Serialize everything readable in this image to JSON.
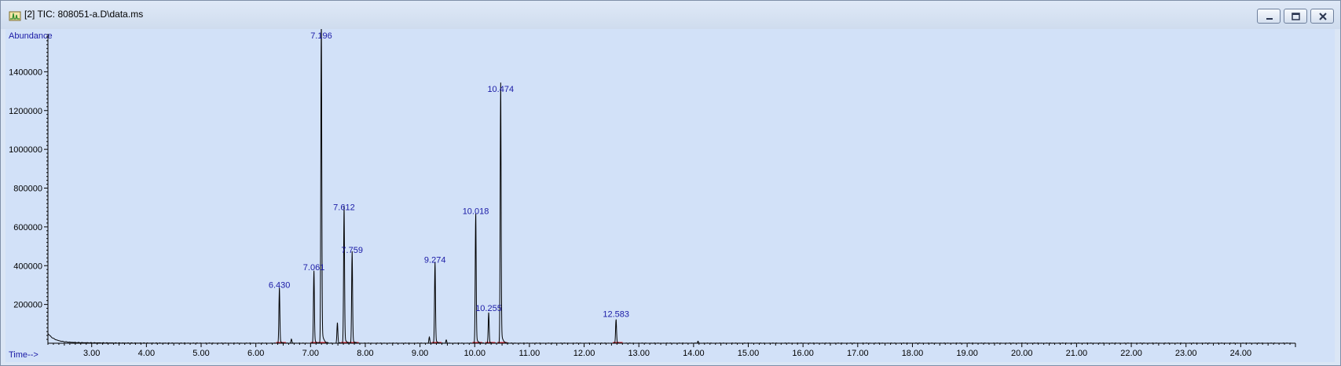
{
  "window": {
    "title": "[2] TIC: 808051-a.D\\data.ms",
    "icon": "chromatogram-app-icon"
  },
  "controls": {
    "minimize_icon": "minimize-icon",
    "maximize_icon": "restore-icon",
    "close_icon": "close-icon"
  },
  "colors": {
    "trace": "#000000",
    "baseline": "#e0202a",
    "labels": "#1a1aa6",
    "plot_bg": "#d2e1f8"
  },
  "chart_data": {
    "type": "line",
    "ylabel": "Abundance",
    "xlabel": "Time-->",
    "xlim": [
      2.2,
      25.0
    ],
    "ylim": [
      0,
      1600000
    ],
    "y_ticks": [
      200000,
      400000,
      600000,
      800000,
      1000000,
      1200000,
      1400000
    ],
    "y_tick_labels": [
      "200000",
      "400000",
      "600000",
      "800000",
      "1000000",
      "1200000",
      "1400000"
    ],
    "x_ticks": [
      3,
      4,
      5,
      6,
      7,
      8,
      9,
      10,
      11,
      12,
      13,
      14,
      15,
      16,
      17,
      18,
      19,
      20,
      21,
      22,
      23,
      24
    ],
    "x_tick_labels": [
      "3.00",
      "4.00",
      "5.00",
      "6.00",
      "7.00",
      "8.00",
      "9.00",
      "10.00",
      "11.00",
      "12.00",
      "13.00",
      "14.00",
      "15.00",
      "16.00",
      "17.00",
      "18.00",
      "19.00",
      "20.00",
      "21.00",
      "22.00",
      "23.00",
      "24.00"
    ],
    "grid": false,
    "peaks": [
      {
        "label": "6.430",
        "time": 6.43,
        "height": 270000
      },
      {
        "label": "7.061",
        "time": 7.061,
        "height": 360000
      },
      {
        "label": "7.196",
        "time": 7.196,
        "height": 1600000
      },
      {
        "label": "7.612",
        "time": 7.612,
        "height": 670000
      },
      {
        "label": "7.759",
        "time": 7.759,
        "height": 450000
      },
      {
        "label": "9.274",
        "time": 9.274,
        "height": 400000
      },
      {
        "label": "10.018",
        "time": 10.018,
        "height": 650000
      },
      {
        "label": "10.255",
        "time": 10.255,
        "height": 150000
      },
      {
        "label": "10.474",
        "time": 10.474,
        "height": 1280000
      },
      {
        "label": "12.583",
        "time": 12.583,
        "height": 120000
      }
    ],
    "minor_peaks": [
      {
        "time": 6.65,
        "height": 20000
      },
      {
        "time": 7.49,
        "height": 100000
      },
      {
        "time": 9.17,
        "height": 30000
      },
      {
        "time": 9.48,
        "height": 15000
      },
      {
        "time": 14.08,
        "height": 10000
      }
    ]
  }
}
